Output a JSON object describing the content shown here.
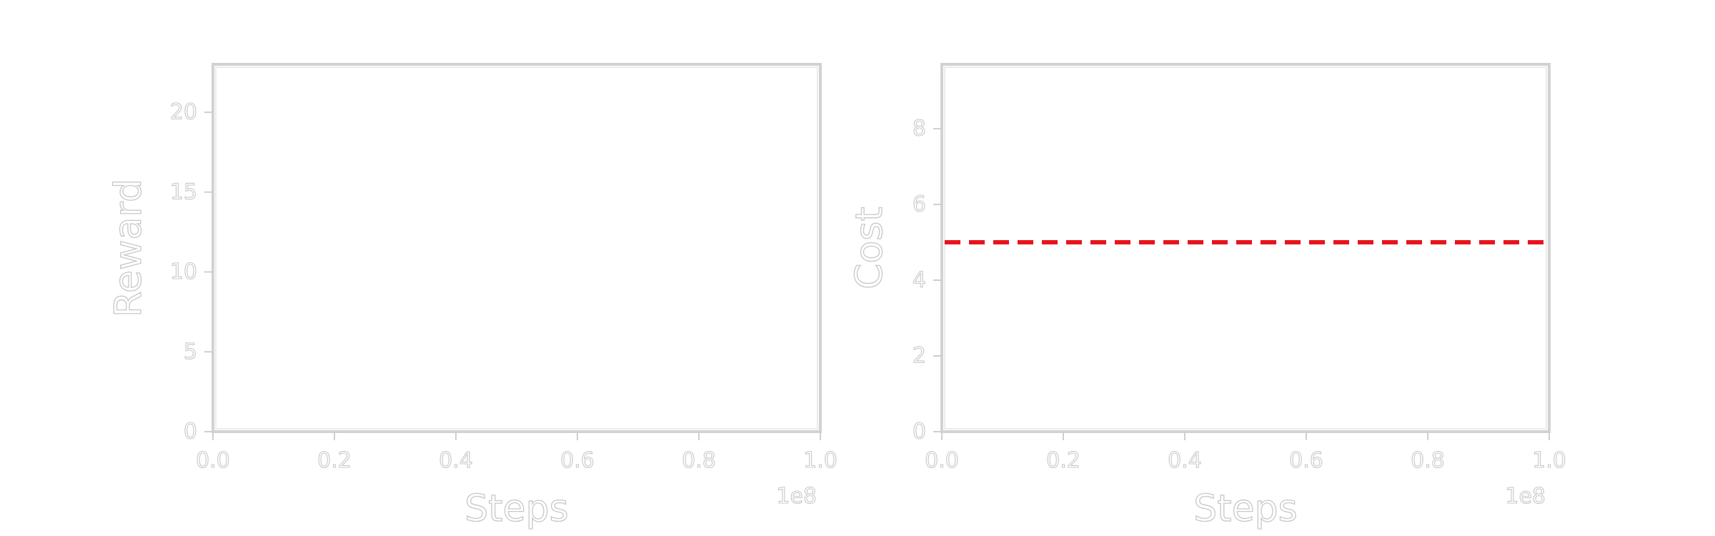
{
  "chart_data": [
    {
      "type": "line",
      "title": "",
      "xlabel": "Steps",
      "ylabel": "Reward",
      "x_offset_label": "1e8",
      "xlim": [
        0.0,
        1.0
      ],
      "ylim": [
        0,
        23
      ],
      "x_ticks": [
        0.0,
        0.2,
        0.4,
        0.6,
        0.8,
        1.0
      ],
      "x_tick_labels": [
        "0.0",
        "0.2",
        "0.4",
        "0.6",
        "0.8",
        "1.0"
      ],
      "y_ticks": [
        0,
        5,
        10,
        15,
        20
      ],
      "y_tick_labels": [
        "0",
        "5",
        "10",
        "15",
        "20"
      ],
      "grid": false,
      "series": [],
      "reference_lines": []
    },
    {
      "type": "line",
      "title": "",
      "xlabel": "Steps",
      "ylabel": "Cost",
      "x_offset_label": "1e8",
      "xlim": [
        0.0,
        1.0
      ],
      "ylim": [
        0,
        9.7
      ],
      "x_ticks": [
        0.0,
        0.2,
        0.4,
        0.6,
        0.8,
        1.0
      ],
      "x_tick_labels": [
        "0.0",
        "0.2",
        "0.4",
        "0.6",
        "0.8",
        "1.0"
      ],
      "y_ticks": [
        0,
        2,
        4,
        6,
        8
      ],
      "y_tick_labels": [
        "0",
        "2",
        "4",
        "6",
        "8"
      ],
      "grid": false,
      "series": [],
      "reference_lines": [
        {
          "orientation": "horizontal",
          "value": 5,
          "color": "#e8141c",
          "style": "dashed"
        }
      ]
    }
  ]
}
